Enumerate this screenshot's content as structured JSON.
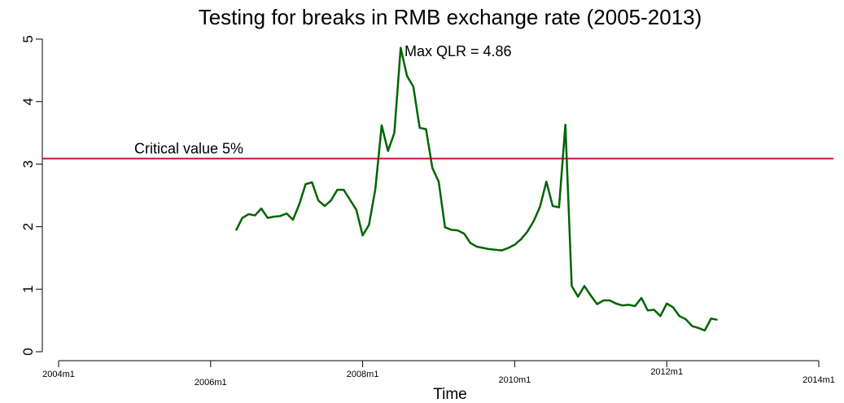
{
  "chart_data": {
    "type": "line",
    "title": "Testing for breaks in RMB exchange rate (2005-2013)",
    "x_label": "Time",
    "x": [
      "2006m5",
      "2006m6",
      "2006m7",
      "2006m8",
      "2006m9",
      "2006m10",
      "2006m11",
      "2006m12",
      "2007m1",
      "2007m2",
      "2007m3",
      "2007m4",
      "2007m5",
      "2007m6",
      "2007m7",
      "2007m8",
      "2007m9",
      "2007m10",
      "2007m11",
      "2007m12",
      "2008m1",
      "2008m2",
      "2008m3",
      "2008m4",
      "2008m5",
      "2008m6",
      "2008m7",
      "2008m8",
      "2008m9",
      "2008m10",
      "2008m11",
      "2008m12",
      "2009m1",
      "2009m2",
      "2009m3",
      "2009m4",
      "2009m5",
      "2009m6",
      "2009m7",
      "2009m8",
      "2009m9",
      "2009m10",
      "2009m11",
      "2009m12",
      "2010m1",
      "2010m2",
      "2010m3",
      "2010m4",
      "2010m5",
      "2010m6",
      "2010m7",
      "2010m8",
      "2010m9",
      "2010m10",
      "2010m11",
      "2010m12",
      "2011m1",
      "2011m2",
      "2011m3",
      "2011m4",
      "2011m5",
      "2011m6",
      "2011m7",
      "2011m8",
      "2011m9",
      "2011m10",
      "2011m11",
      "2011m12",
      "2012m1",
      "2012m2",
      "2012m3",
      "2012m4",
      "2012m5",
      "2012m6",
      "2012m7",
      "2012m8",
      "2012m9"
    ],
    "series": [
      {
        "name": "QLR",
        "color": "#006400",
        "values": [
          1.94,
          2.14,
          2.2,
          2.18,
          2.29,
          2.14,
          2.16,
          2.17,
          2.21,
          2.11,
          2.36,
          2.68,
          2.71,
          2.42,
          2.33,
          2.42,
          2.59,
          2.59,
          2.43,
          2.27,
          1.86,
          2.03,
          2.6,
          3.62,
          3.21,
          3.5,
          4.86,
          4.41,
          4.24,
          3.58,
          3.56,
          2.94,
          2.72,
          1.99,
          1.95,
          1.94,
          1.89,
          1.74,
          1.68,
          1.66,
          1.64,
          1.63,
          1.62,
          1.66,
          1.71,
          1.8,
          1.92,
          2.09,
          2.32,
          2.72,
          2.33,
          2.31,
          3.63,
          1.05,
          0.88,
          1.05,
          0.9,
          0.76,
          0.82,
          0.82,
          0.77,
          0.74,
          0.75,
          0.73,
          0.86,
          0.66,
          0.67,
          0.57,
          0.77,
          0.71,
          0.57,
          0.52,
          0.41,
          0.38,
          0.34,
          0.53,
          0.51
        ]
      }
    ],
    "xlim": [
      "2004m1",
      "2014m1"
    ],
    "xticks": [
      "2004m1",
      "2006m1",
      "2008m1",
      "2010m1",
      "2012m1",
      "2014m1"
    ],
    "ylim": [
      0,
      5
    ],
    "yticks": [
      0,
      1,
      2,
      3,
      4,
      5
    ],
    "critical_value": {
      "value": 3.09,
      "color": "#c8173c",
      "label": "Critical value 5%"
    },
    "max_annotation": "Max QLR = 4.86"
  }
}
